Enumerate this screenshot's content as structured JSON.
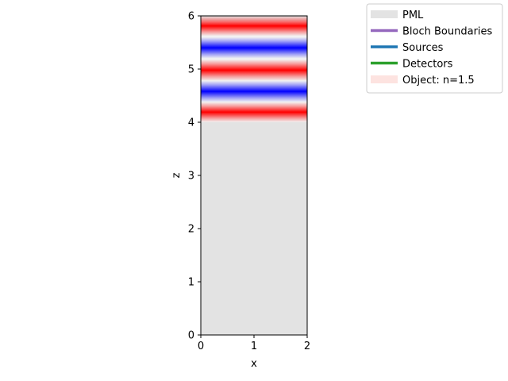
{
  "chart_data": {
    "type": "heatmap",
    "title": "",
    "xlabel": "x",
    "ylabel": "z",
    "xlim": [
      0,
      2
    ],
    "ylim": [
      0,
      6
    ],
    "x_ticks": [
      "0",
      "1",
      "2"
    ],
    "y_ticks": [
      "0",
      "1",
      "2",
      "3",
      "4",
      "5",
      "6"
    ],
    "grid": false,
    "legend_placement": "upper right, outside plot",
    "legend": [
      {
        "label": "PML",
        "color": "#e3e3e3",
        "kind": "patch"
      },
      {
        "label": "Bloch Boundaries",
        "color": "#9467bd",
        "kind": "line"
      },
      {
        "label": "Sources",
        "color": "#1f77b4",
        "kind": "line"
      },
      {
        "label": "Detectors",
        "color": "#2ca02c",
        "kind": "line"
      },
      {
        "label": "Object: n=1.5",
        "color": "#fde3e0",
        "kind": "patch"
      }
    ],
    "background_region": {
      "name": "PML",
      "z_range": [
        0,
        6
      ],
      "color": "#e3e3e3"
    },
    "field_region": {
      "z_range": [
        4.0,
        5.9
      ],
      "colormap": [
        "#0000ff",
        "#ffffff",
        "#ff0000"
      ],
      "bands": [
        {
          "z": 4.18,
          "sign": "positive"
        },
        {
          "z": 4.58,
          "sign": "negative"
        },
        {
          "z": 4.98,
          "sign": "positive"
        },
        {
          "z": 5.4,
          "sign": "negative"
        },
        {
          "z": 5.82,
          "sign": "positive"
        }
      ]
    }
  }
}
